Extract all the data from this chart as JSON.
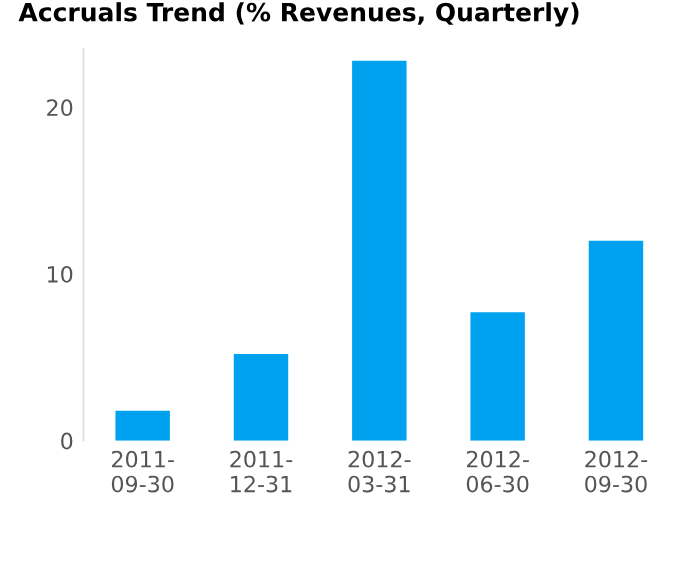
{
  "chart_data": {
    "type": "bar",
    "title": "Accruals Trend (% Revenues, Quarterly)",
    "categories": [
      "2011-\n09-30",
      "2011-\n12-31",
      "2012-\n03-31",
      "2012-\n06-30",
      "2012-\n09-30"
    ],
    "series": [
      {
        "color": "#00a2f0",
        "values": [
          1.8,
          5.2,
          22.8,
          7.7,
          12.0
        ]
      }
    ],
    "ylim": [
      0,
      23.5
    ],
    "yticks": [
      0,
      10,
      20
    ],
    "grid": false
  }
}
